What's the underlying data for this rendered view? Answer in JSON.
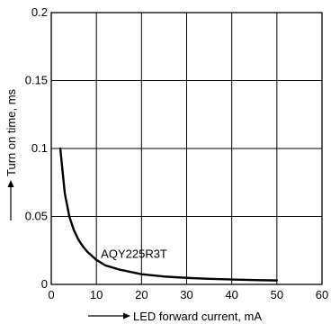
{
  "chart_data": {
    "type": "line",
    "title": "",
    "xlabel": "LED forward current, mA",
    "ylabel": "Turn on time, ms",
    "xlim": [
      0,
      60
    ],
    "ylim": [
      0,
      0.2
    ],
    "x_ticks": [
      0,
      10,
      20,
      30,
      40,
      50,
      60
    ],
    "x_tick_labels": [
      "0",
      "10",
      "20",
      "30",
      "40",
      "50",
      "60"
    ],
    "y_ticks": [
      0,
      0.05,
      0.1,
      0.15,
      0.2
    ],
    "y_tick_labels": [
      "0",
      "0.05",
      "0.1",
      "0.15",
      "0.2"
    ],
    "grid": true,
    "series": [
      {
        "name": "AQY225R3T",
        "x": [
          2,
          3,
          4,
          5,
          6,
          7,
          8,
          10,
          12,
          15,
          20,
          25,
          30,
          35,
          40,
          45,
          50
        ],
        "y": [
          0.1,
          0.067,
          0.05,
          0.04,
          0.033,
          0.028,
          0.024,
          0.018,
          0.014,
          0.011,
          0.0075,
          0.0058,
          0.0048,
          0.0041,
          0.0036,
          0.0032,
          0.0029
        ]
      }
    ],
    "annotations": [
      {
        "text": "AQY225R3T",
        "x": 11,
        "y": 0.0195
      }
    ]
  }
}
